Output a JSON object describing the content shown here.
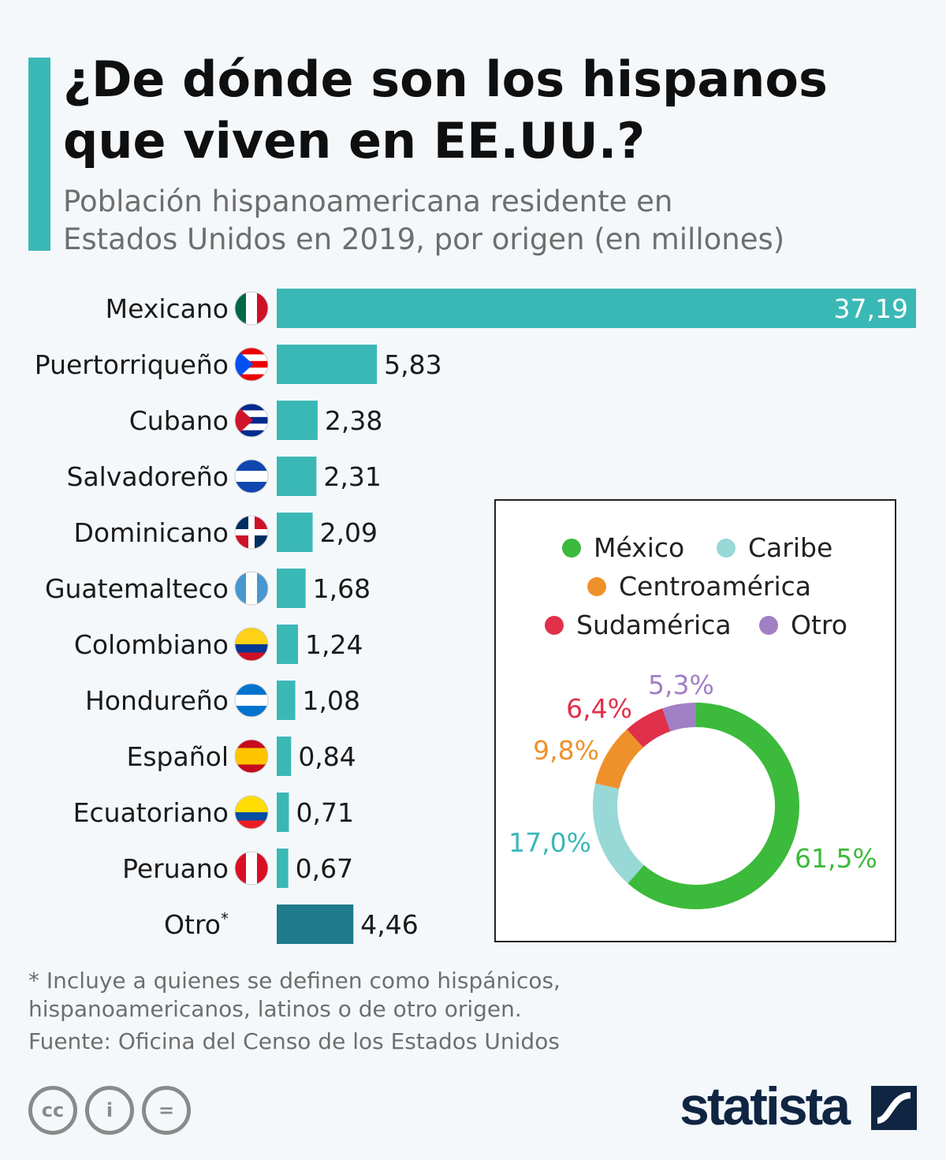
{
  "title": "¿De dónde son los hispanos\nque viven en EE.UU.?",
  "subtitle": "Población hispanoamericana residente en\nEstados Unidos en 2019, por origen (en millones)",
  "chart_data": [
    {
      "type": "bar",
      "orientation": "horizontal",
      "categories": [
        "Mexicano",
        "Puertorriqueño",
        "Cubano",
        "Salvadoreño",
        "Dominicano",
        "Guatemalteco",
        "Colombiano",
        "Hondureño",
        "Español",
        "Ecuatoriano",
        "Peruano",
        "Otro*"
      ],
      "values": [
        37.19,
        5.83,
        2.38,
        2.31,
        2.09,
        1.68,
        1.24,
        1.08,
        0.84,
        0.71,
        0.67,
        4.46
      ],
      "data_labels": [
        "37,19",
        "5,83",
        "2,38",
        "2,31",
        "2,09",
        "1,68",
        "1,24",
        "1,08",
        "0,84",
        "0,71",
        "0,67",
        "4,46"
      ],
      "flags": [
        "mexico-flag-icon",
        "puerto-rico-flag-icon",
        "cuba-flag-icon",
        "el-salvador-flag-icon",
        "dominican-republic-flag-icon",
        "guatemala-flag-icon",
        "colombia-flag-icon",
        "honduras-flag-icon",
        "spain-flag-icon",
        "ecuador-flag-icon",
        "peru-flag-icon",
        null
      ],
      "bar_color": "#3ab8b6",
      "highlight_color": "#1f7a8c",
      "xlim": [
        0,
        37.19
      ],
      "grid": false
    },
    {
      "type": "pie",
      "donut": true,
      "categories": [
        "México",
        "Caribe",
        "Centroamérica",
        "Sudamérica",
        "Otro"
      ],
      "values": [
        61.5,
        17.0,
        9.8,
        6.4,
        5.3
      ],
      "data_labels": [
        "61,5%",
        "17,0%",
        "9,8%",
        "6,4%",
        "5,3%"
      ],
      "colors": [
        "#3bba3b",
        "#98d8d6",
        "#ef912b",
        "#e0304a",
        "#a07fc4"
      ],
      "label_colors": [
        "#3bba3b",
        "#3ab8b6",
        "#ef912b",
        "#e0304a",
        "#a07fc4"
      ],
      "legend": "top"
    }
  ],
  "footnote": "* Incluye a quienes se definen como hispánicos,\n   hispanoamericanos, latinos o de otro origen.",
  "source": "Fuente: Oficina del Censo de los Estados Unidos",
  "license_icons": [
    "cc",
    "i",
    "="
  ],
  "brand": "statista"
}
